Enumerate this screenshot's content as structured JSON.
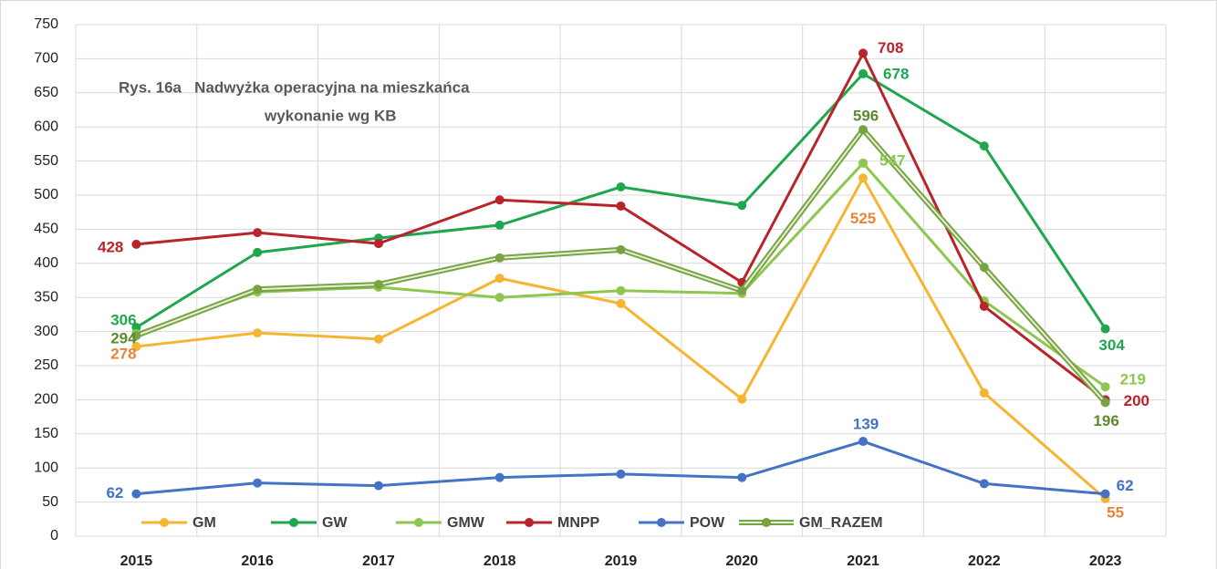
{
  "chart_data": {
    "type": "line",
    "title": "Rys. 16a   Nadwyżka operacyjna na mieszkańca",
    "subtitle": "wykonanie wg KB",
    "categories": [
      "2015",
      "2016",
      "2017",
      "2018",
      "2019",
      "2020",
      "2021",
      "2022",
      "2023"
    ],
    "ylim": [
      0,
      750
    ],
    "yticks": [
      0,
      50,
      100,
      150,
      200,
      250,
      300,
      350,
      400,
      450,
      500,
      550,
      600,
      650,
      700,
      750
    ],
    "grid": true,
    "legend": "bottom",
    "series": [
      {
        "name": "GM",
        "color": "#f5b531",
        "label_color": "#e8833a",
        "values": [
          278,
          298,
          289,
          378,
          341,
          201,
          525,
          210,
          55
        ],
        "value_labels": [
          "278",
          null,
          null,
          null,
          null,
          null,
          "525",
          null,
          "55"
        ]
      },
      {
        "name": "GW",
        "color": "#1fa64f",
        "values": [
          306,
          416,
          437,
          456,
          512,
          485,
          678,
          572,
          304
        ],
        "value_labels": [
          "306",
          null,
          null,
          null,
          null,
          null,
          "678",
          null,
          "304"
        ]
      },
      {
        "name": "GMW",
        "color": "#8dc74e",
        "values": [
          297,
          358,
          365,
          350,
          360,
          356,
          547,
          345,
          219
        ],
        "value_labels": [
          null,
          null,
          null,
          null,
          null,
          null,
          "547",
          null,
          "219"
        ]
      },
      {
        "name": "MNPP",
        "color": "#b8242a",
        "values": [
          428,
          445,
          429,
          493,
          484,
          372,
          708,
          337,
          200
        ],
        "value_labels": [
          "428",
          null,
          null,
          null,
          null,
          null,
          "708",
          null,
          "200"
        ]
      },
      {
        "name": "POW",
        "color": "#4472c4",
        "values": [
          62,
          78,
          74,
          86,
          91,
          86,
          139,
          77,
          62
        ],
        "value_labels": [
          "62",
          null,
          null,
          null,
          null,
          null,
          "139",
          null,
          "62"
        ]
      },
      {
        "name": "GM_RAZEM",
        "color": "#78a342",
        "label_color": "#5e8a2e",
        "line_style": "double",
        "values": [
          294,
          362,
          369,
          408,
          420,
          360,
          596,
          394,
          196
        ],
        "value_labels": [
          "294",
          null,
          null,
          null,
          null,
          null,
          "596",
          null,
          "196"
        ]
      }
    ]
  }
}
